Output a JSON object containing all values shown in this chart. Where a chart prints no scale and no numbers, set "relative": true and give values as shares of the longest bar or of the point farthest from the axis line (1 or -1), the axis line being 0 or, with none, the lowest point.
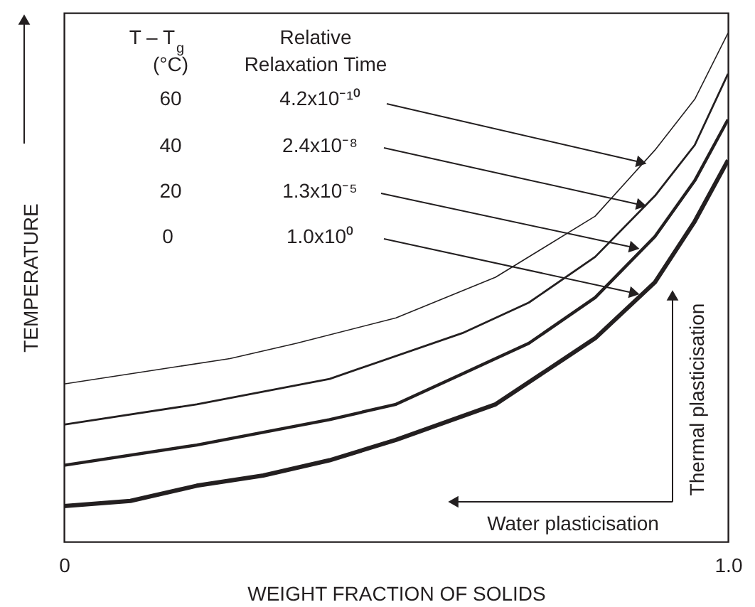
{
  "chart_data": {
    "type": "line",
    "relative": true,
    "xlabel": "WEIGHT FRACTION OF SOLIDS",
    "ylabel": "TEMPERATURE",
    "xlim": [
      0,
      1
    ],
    "xticks": [
      0,
      {
        "value": 1,
        "label": "1.0"
      }
    ],
    "tick_labels": "x",
    "grid": false,
    "marker": "none",
    "line_style": "solid",
    "annotations": [
      "T – T$_{g}$",
      "(°C)",
      "Relative",
      "Relaxation Time",
      "60",
      "4.2x10⁻¹⁰",
      "40",
      "2.4x10⁻⁸",
      "20",
      "1.3x10⁻⁵",
      "0",
      "1.0x10⁰",
      "Thermal plasticisation",
      "Water plasticisation"
    ],
    "series": [
      {
        "color": "#231f20",
        "x": [
          0,
          0.15,
          0.25,
          0.35,
          0.5,
          0.65,
          0.8,
          0.89,
          0.95,
          1.0
        ],
        "values": [
          0.31,
          0.34,
          0.36,
          0.39,
          0.44,
          0.52,
          0.64,
          0.77,
          0.87,
          1.0
        ]
      },
      {
        "color": "#231f20",
        "x": [
          0,
          0.2,
          0.4,
          0.6,
          0.7,
          0.8,
          0.89,
          0.95,
          1.0
        ],
        "values": [
          0.23,
          0.27,
          0.32,
          0.41,
          0.47,
          0.56,
          0.68,
          0.78,
          0.92
        ]
      },
      {
        "color": "#231f20",
        "x": [
          0,
          0.2,
          0.4,
          0.5,
          0.6,
          0.7,
          0.8,
          0.89,
          0.95,
          1.0
        ],
        "values": [
          0.15,
          0.19,
          0.24,
          0.27,
          0.33,
          0.39,
          0.48,
          0.6,
          0.71,
          0.83
        ]
      },
      {
        "color": "#231f20",
        "x": [
          0,
          0.1,
          0.2,
          0.3,
          0.4,
          0.5,
          0.65,
          0.8,
          0.89,
          0.95,
          1.0
        ],
        "values": [
          0.07,
          0.08,
          0.11,
          0.13,
          0.16,
          0.2,
          0.27,
          0.4,
          0.51,
          0.63,
          0.75
        ]
      }
    ]
  }
}
